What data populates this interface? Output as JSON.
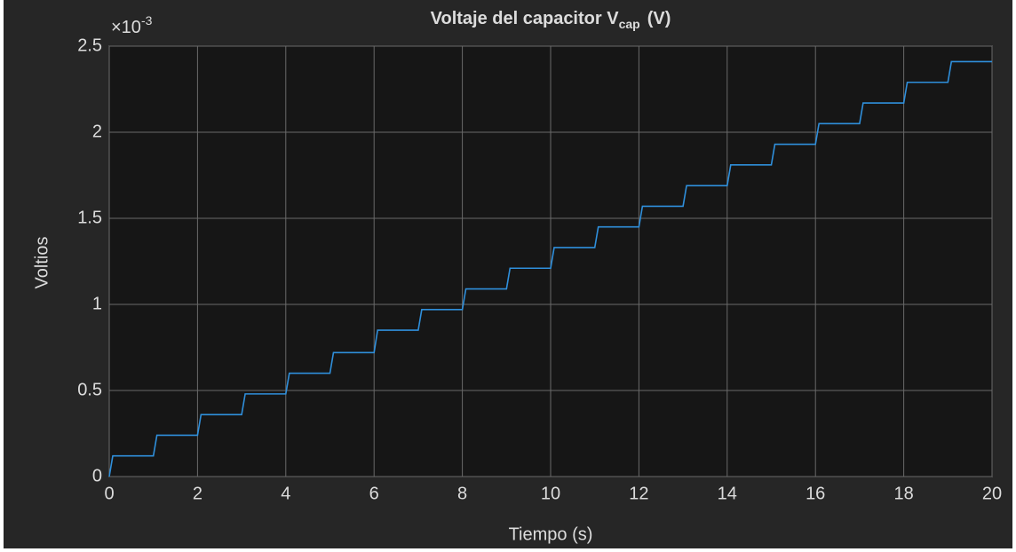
{
  "chart_data": {
    "type": "line",
    "title": "Voltaje del capacitor V",
    "title_subscript": "cap",
    "title_suffix": "(V)",
    "xlabel": "Tiempo (s)",
    "ylabel": "Voltios",
    "y_exponent_base": "×10",
    "y_exponent": "-3",
    "xlim": [
      0,
      20
    ],
    "xticks": [
      0,
      2,
      4,
      6,
      8,
      10,
      12,
      14,
      16,
      18,
      20
    ],
    "ylim": [
      0,
      0.0025
    ],
    "yticks": [
      0,
      {
        "value": 0.0005,
        "label": "0.5"
      },
      {
        "value": 0.001,
        "label": "1"
      },
      {
        "value": 0.0015,
        "label": "1.5"
      },
      {
        "value": 0.002,
        "label": "2"
      },
      {
        "value": 0.0025,
        "label": "2.5"
      }
    ],
    "grid": true,
    "series": [
      {
        "color": "#2f8fdb",
        "x": [
          0,
          0.08,
          1,
          1.08,
          2,
          2.08,
          3,
          3.08,
          4,
          4.08,
          5,
          5.08,
          6,
          6.08,
          7,
          7.08,
          8,
          8.08,
          9,
          9.08,
          10,
          10.08,
          11,
          11.08,
          12,
          12.08,
          13,
          13.08,
          14,
          14.08,
          15,
          15.08,
          16,
          16.08,
          17,
          17.08,
          18,
          18.08,
          19,
          19.08,
          20
        ],
        "values": [
          0,
          0.00012,
          0.00012,
          0.00024,
          0.00024,
          0.00036,
          0.00036,
          0.00048,
          0.00048,
          0.0006,
          0.0006,
          0.00072,
          0.00072,
          0.00085,
          0.00085,
          0.00097,
          0.00097,
          0.00109,
          0.00109,
          0.00121,
          0.00121,
          0.00133,
          0.00133,
          0.00145,
          0.00145,
          0.00157,
          0.00157,
          0.00169,
          0.00169,
          0.00181,
          0.00181,
          0.00193,
          0.00193,
          0.00205,
          0.00205,
          0.00217,
          0.00217,
          0.00229,
          0.00229,
          0.00241,
          0.00241
        ]
      }
    ]
  }
}
